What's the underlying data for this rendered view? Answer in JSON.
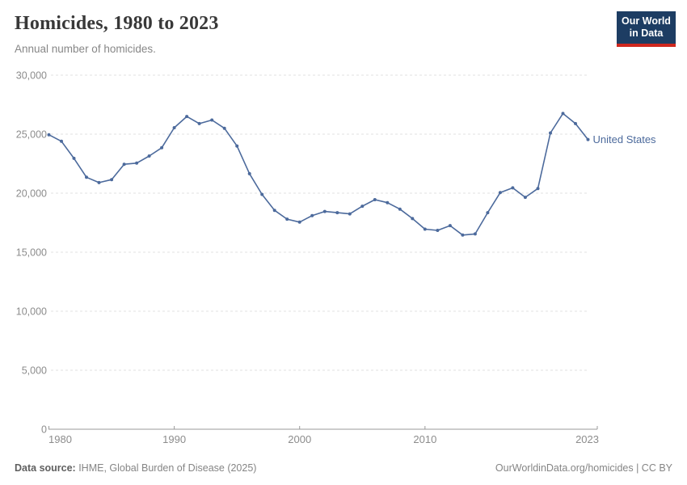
{
  "header": {
    "title": "Homicides, 1980 to 2023",
    "subtitle": "Annual number of homicides."
  },
  "logo": {
    "line1": "Our World",
    "line2": "in Data",
    "bg_color": "#1d3d63",
    "accent_color": "#cf271e"
  },
  "chart_data": {
    "type": "line",
    "title": "Homicides, 1980 to 2023",
    "xlabel": "",
    "ylabel": "",
    "ylim": [
      0,
      30000
    ],
    "yticks": [
      0,
      5000,
      10000,
      15000,
      20000,
      25000,
      30000
    ],
    "xticks": [
      1980,
      1990,
      2000,
      2010,
      2023
    ],
    "grid": "dashed-horizontal",
    "legend_position": "end-of-line-label",
    "x": [
      1980,
      1981,
      1982,
      1983,
      1984,
      1985,
      1986,
      1987,
      1988,
      1989,
      1990,
      1991,
      1992,
      1993,
      1994,
      1995,
      1996,
      1997,
      1998,
      1999,
      2000,
      2001,
      2002,
      2003,
      2004,
      2005,
      2006,
      2007,
      2008,
      2009,
      2010,
      2011,
      2012,
      2013,
      2014,
      2015,
      2016,
      2017,
      2018,
      2019,
      2020,
      2021,
      2022,
      2023
    ],
    "series": [
      {
        "name": "United States",
        "color": "#4c6a9c",
        "values": [
          24950,
          24400,
          22950,
          21350,
          20900,
          21150,
          22450,
          22550,
          23150,
          23850,
          25550,
          26500,
          25900,
          26200,
          25500,
          24000,
          21650,
          19900,
          18550,
          17800,
          17550,
          18100,
          18450,
          18350,
          18250,
          18900,
          19450,
          19200,
          18650,
          17850,
          16950,
          16850,
          17250,
          16450,
          16550,
          18350,
          20050,
          20450,
          19650,
          20400,
          25100,
          26750,
          25900,
          24550
        ]
      }
    ],
    "colors": {
      "gridline": "#e2e2e2",
      "axis": "#999999",
      "tick_label": "#8c8c8c"
    }
  },
  "footer": {
    "source_label": "Data source:",
    "source_text": " IHME, Global Burden of Disease (2025)",
    "right_text": "OurWorldinData.org/homicides | CC BY"
  }
}
